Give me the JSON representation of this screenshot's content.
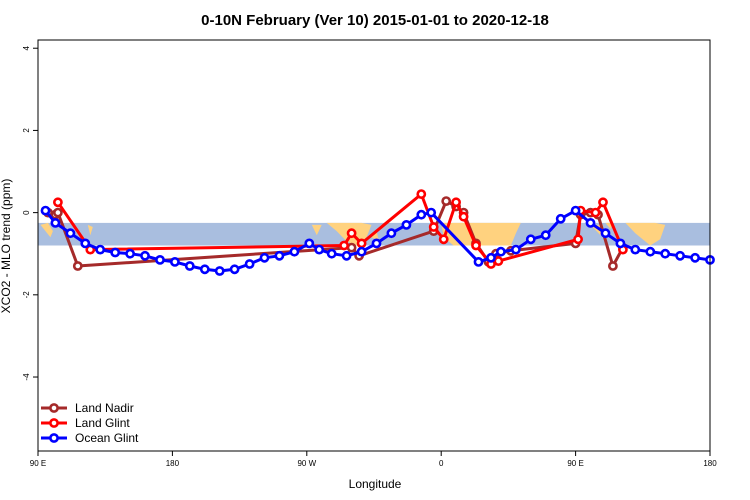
{
  "chart_data": {
    "type": "line",
    "title": "0-10N February (Ver 10)   2015-01-01 to 2020-12-18",
    "xlabel": "Longitude",
    "ylabel": "XCO2 - MLO trend (ppm)",
    "xlim": [
      -90,
      180
    ],
    "ylim": [
      -5.8,
      4.2
    ],
    "x_ticks": [
      {
        "value": -90,
        "label": "90 E"
      },
      {
        "value": -36,
        "label": "180"
      },
      {
        "value": 18,
        "label": "90 W"
      },
      {
        "value": 72,
        "label": "0"
      },
      {
        "value": 126,
        "label": "90 E"
      },
      {
        "value": 180,
        "label": "180"
      }
    ],
    "y_ticks": [
      {
        "value": 4,
        "label": "4"
      },
      {
        "value": 2,
        "label": "2"
      },
      {
        "value": 0,
        "label": "0"
      },
      {
        "value": -2,
        "label": "-2"
      },
      {
        "value": -4,
        "label": "-4"
      }
    ],
    "band": {
      "y_range": [
        -0.8,
        -0.25
      ],
      "color": "#a9bedf"
    },
    "land_color": "#ffd27f",
    "land_patches": [
      [
        [
          -89,
          -0.3
        ],
        [
          -85,
          -0.6
        ],
        [
          -84,
          -0.45
        ],
        [
          -86,
          -0.25
        ]
      ],
      [
        [
          -70,
          -0.3
        ],
        [
          -69,
          -0.55
        ],
        [
          -68,
          -0.35
        ]
      ],
      [
        [
          26,
          -0.25
        ],
        [
          30,
          -0.45
        ],
        [
          34,
          -0.7
        ],
        [
          38,
          -0.8
        ],
        [
          42,
          -0.6
        ],
        [
          44,
          -0.3
        ],
        [
          40,
          -0.25
        ],
        [
          33,
          -0.25
        ]
      ],
      [
        [
          20,
          -0.3
        ],
        [
          22,
          -0.55
        ],
        [
          24,
          -0.3
        ]
      ],
      [
        [
          44,
          -0.6
        ],
        [
          47,
          -0.7
        ],
        [
          46,
          -0.45
        ]
      ],
      [
        [
          72,
          -0.25
        ],
        [
          73,
          -0.6
        ],
        [
          77,
          -0.8
        ],
        [
          85,
          -0.8
        ],
        [
          94,
          -0.8
        ],
        [
          100,
          -0.8
        ],
        [
          102,
          -0.5
        ],
        [
          104,
          -0.25
        ]
      ],
      [
        [
          132,
          -0.3
        ],
        [
          136,
          -0.55
        ],
        [
          137,
          -0.3
        ]
      ],
      [
        [
          146,
          -0.25
        ],
        [
          150,
          -0.5
        ],
        [
          156,
          -0.8
        ],
        [
          160,
          -0.65
        ],
        [
          162,
          -0.3
        ],
        [
          158,
          -0.25
        ]
      ],
      [
        [
          138,
          -0.25
        ],
        [
          140,
          -0.4
        ],
        [
          141,
          -0.25
        ]
      ]
    ],
    "legend": {
      "position": "bottom-left"
    },
    "series": [
      {
        "name": "Land Nadir",
        "color": "#a52a2a",
        "x": [
          -86,
          -83,
          -82,
          -74,
          36,
          39,
          69,
          74,
          78,
          81,
          86,
          91,
          94,
          100,
          126,
          128,
          132,
          135,
          141,
          145
        ],
        "y": [
          0.0,
          -0.05,
          0.0,
          -1.3,
          -0.85,
          -1.05,
          -0.45,
          0.28,
          0.15,
          0.0,
          -0.75,
          -1.2,
          -1.0,
          -0.93,
          -0.75,
          -0.05,
          0.0,
          -0.05,
          -1.3,
          -0.85
        ]
      },
      {
        "name": "Land Glint",
        "color": "#ff0000",
        "x": [
          -82,
          -69,
          33,
          36,
          40,
          64,
          69,
          73,
          78,
          81,
          86,
          92,
          95,
          127,
          128,
          134,
          137,
          145
        ],
        "y": [
          0.25,
          -0.9,
          -0.8,
          -0.5,
          -0.75,
          0.45,
          -0.35,
          -0.65,
          0.25,
          -0.1,
          -0.8,
          -1.25,
          -1.18,
          -0.65,
          0.05,
          0.0,
          0.25,
          -0.9
        ]
      },
      {
        "name": "Ocean Glint",
        "color": "#0000ff",
        "x": [
          -87,
          -83,
          -77,
          -71,
          -65,
          -59,
          -53,
          -47,
          -41,
          -35,
          -29,
          -23,
          -17,
          -11,
          -5,
          1,
          7,
          13,
          19,
          23,
          28,
          34,
          40,
          46,
          52,
          58,
          64,
          68,
          87,
          92,
          96,
          102,
          108,
          114,
          120,
          126,
          132,
          138,
          144,
          150,
          156,
          162,
          168,
          174,
          180
        ],
        "y": [
          0.05,
          -0.25,
          -0.5,
          -0.75,
          -0.9,
          -0.97,
          -1.0,
          -1.05,
          -1.15,
          -1.2,
          -1.3,
          -1.38,
          -1.42,
          -1.38,
          -1.25,
          -1.1,
          -1.05,
          -0.95,
          -0.75,
          -0.9,
          -1.0,
          -1.05,
          -0.95,
          -0.75,
          -0.5,
          -0.3,
          -0.05,
          0.0,
          -1.2,
          -1.1,
          -0.95,
          -0.9,
          -0.65,
          -0.55,
          -0.15,
          0.05,
          -0.25,
          -0.5,
          -0.75,
          -0.9,
          -0.95,
          -1.0,
          -1.05,
          -1.1,
          -1.15
        ]
      }
    ]
  }
}
